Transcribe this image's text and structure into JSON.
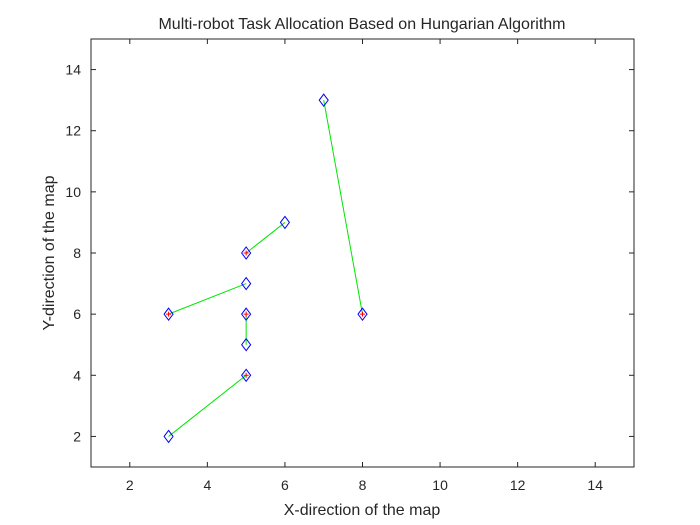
{
  "chart_data": {
    "type": "scatter",
    "title": "Multi-robot Task Allocation Based on Hungarian Algorithm",
    "xlabel": "X-direction of the map",
    "ylabel": "Y-direction of the map",
    "xlim": [
      1,
      15
    ],
    "ylim": [
      1,
      15
    ],
    "xticks": [
      2,
      4,
      6,
      8,
      10,
      12,
      14
    ],
    "yticks": [
      2,
      4,
      6,
      8,
      10,
      12,
      14
    ],
    "grid": false,
    "legend": "none",
    "series": [
      {
        "role": "task",
        "marker": "diamond",
        "color": "#0000ff",
        "points": [
          [
            3,
            6
          ],
          [
            5,
            8
          ],
          [
            5,
            6
          ],
          [
            5,
            4
          ],
          [
            8,
            6
          ]
        ]
      },
      {
        "role": "robot",
        "marker": "diamond",
        "color": "#0000ff",
        "points": [
          [
            3,
            2
          ],
          [
            5,
            5
          ],
          [
            5,
            7
          ],
          [
            6,
            9
          ],
          [
            7,
            13
          ]
        ]
      },
      {
        "role": "task-center",
        "marker": "plus",
        "color": "#ff0000",
        "points": [
          [
            3,
            6
          ],
          [
            5,
            8
          ],
          [
            5,
            6
          ],
          [
            5,
            4
          ],
          [
            8,
            6
          ]
        ]
      }
    ],
    "assignments": [
      {
        "from": [
          3,
          2
        ],
        "to": [
          5,
          4
        ]
      },
      {
        "from": [
          5,
          5
        ],
        "to": [
          5,
          6
        ]
      },
      {
        "from": [
          5,
          7
        ],
        "to": [
          3,
          6
        ]
      },
      {
        "from": [
          6,
          9
        ],
        "to": [
          5,
          8
        ]
      },
      {
        "from": [
          7,
          13
        ],
        "to": [
          8,
          6
        ]
      }
    ],
    "colors": {
      "assignment_line": "#00e600",
      "axis": "#262626",
      "background": "#ffffff"
    }
  }
}
